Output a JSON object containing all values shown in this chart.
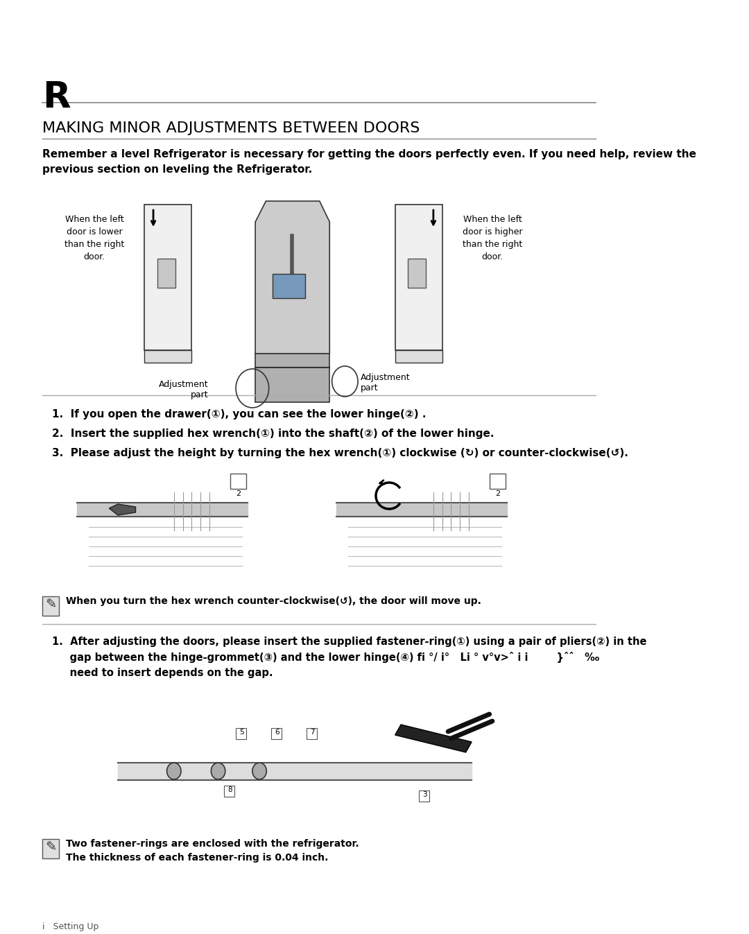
{
  "background_color": "#ffffff",
  "page_letter": "R",
  "section_title": "MAKING MINOR ADJUSTMENTS BETWEEN DOORS",
  "intro_text": "Remember a level Refrigerator is necessary for getting the doors perfectly even. If you need help, review the\nprevious section on leveling the Refrigerator.",
  "left_label": "When the left\ndoor is lower\nthan the right\ndoor.",
  "right_label": "When the left\ndoor is higher\nthan the right\ndoor.",
  "adj_label1": "Adjustment\npart",
  "adj_label2": "Adjustment\npart",
  "steps": [
    "1.  If you open the drawer(①), you can see the lower hinge(②) .",
    "2.  Insert the supplied hex wrench(①) into the shaft(②) of the lower hinge.",
    "3.  Please adjust the height by turning the hex wrench(①) clockwise (↻) or counter-clockwise(↺)."
  ],
  "note1": "When you turn the hex wrench counter-clockwise(↺), the door will move up.",
  "step2_1": "1.  After adjusting the doors, please insert the supplied fastener-ring(①) using a pair of pliers(②) in the\n     gap between the hinge-grommet(③) and the lower hinge(④) fi °/ i°   Li ° v°v>ˆ i i        }ˆˆ   ‰\n     need to insert depends on the gap.",
  "note2": "Two fastener-rings are enclosed with the refrigerator.\nThe thickness of each fastener-ring is 0.04 inch.",
  "footer": "i   Setting Up"
}
